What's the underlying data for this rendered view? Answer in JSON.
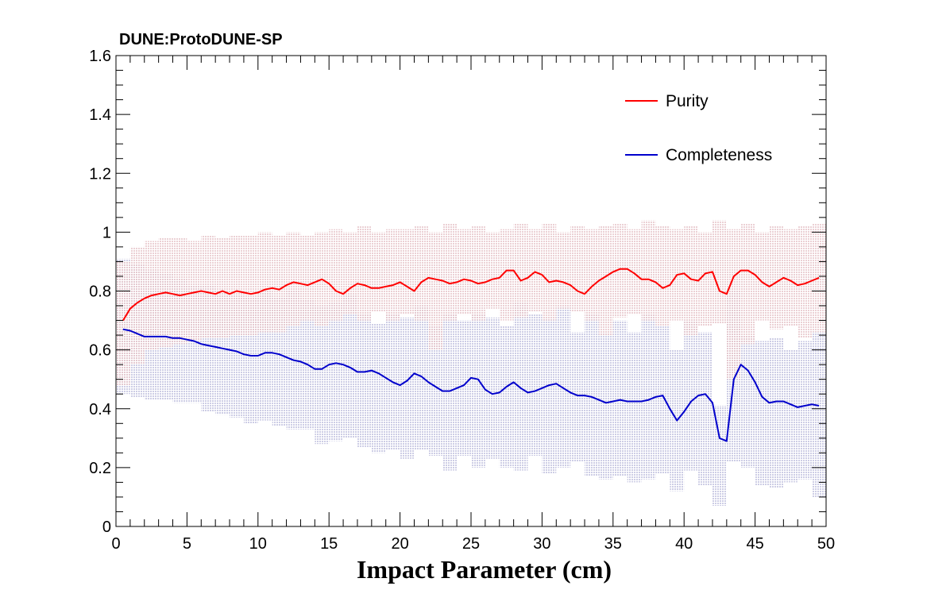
{
  "chart_data": {
    "type": "line",
    "title": "DUNE:ProtoDUNE-SP",
    "xlabel": "Impact Parameter (cm)",
    "ylabel": "",
    "xlim": [
      0,
      50
    ],
    "ylim": [
      0,
      1.6
    ],
    "xticks": [
      "0",
      "5",
      "10",
      "15",
      "20",
      "25",
      "30",
      "35",
      "40",
      "45",
      "50"
    ],
    "yticks": [
      "0",
      "0.2",
      "0.4",
      "0.6",
      "0.8",
      "1",
      "1.2",
      "1.4",
      "1.6"
    ],
    "grid": false,
    "legend_position": "top-right",
    "colors": {
      "purity": "#ff0000",
      "completeness": "#0000cc",
      "purity_band": "#e8c8cc",
      "completeness_band": "#c4c4e0"
    },
    "series": [
      {
        "name": "Purity",
        "color": "#ff0000",
        "x": [
          0.5,
          1,
          1.5,
          2,
          2.5,
          3,
          3.5,
          4,
          4.5,
          5,
          5.5,
          6,
          6.5,
          7,
          7.5,
          8,
          8.5,
          9,
          9.5,
          10,
          10.5,
          11,
          11.5,
          12,
          12.5,
          13,
          13.5,
          14,
          14.5,
          15,
          15.5,
          16,
          16.5,
          17,
          17.5,
          18,
          18.5,
          19,
          19.5,
          20,
          20.5,
          21,
          21.5,
          22,
          22.5,
          23,
          23.5,
          24,
          24.5,
          25,
          25.5,
          26,
          26.5,
          27,
          27.5,
          28,
          28.5,
          29,
          29.5,
          30,
          30.5,
          31,
          31.5,
          32,
          32.5,
          33,
          33.5,
          34,
          34.5,
          35,
          35.5,
          36,
          36.5,
          37,
          37.5,
          38,
          38.5,
          39,
          39.5,
          40,
          40.5,
          41,
          41.5,
          42,
          42.5,
          43,
          43.5,
          44,
          44.5,
          45,
          45.5,
          46,
          46.5,
          47,
          47.5,
          48,
          48.5,
          49,
          49.5
        ],
        "y": [
          0.7,
          0.74,
          0.76,
          0.775,
          0.785,
          0.79,
          0.795,
          0.79,
          0.785,
          0.79,
          0.795,
          0.8,
          0.795,
          0.79,
          0.8,
          0.79,
          0.8,
          0.795,
          0.79,
          0.795,
          0.805,
          0.81,
          0.805,
          0.82,
          0.83,
          0.825,
          0.82,
          0.83,
          0.84,
          0.825,
          0.8,
          0.79,
          0.81,
          0.825,
          0.82,
          0.81,
          0.81,
          0.815,
          0.82,
          0.83,
          0.815,
          0.8,
          0.83,
          0.845,
          0.84,
          0.835,
          0.825,
          0.83,
          0.84,
          0.835,
          0.825,
          0.83,
          0.84,
          0.845,
          0.87,
          0.87,
          0.835,
          0.845,
          0.865,
          0.855,
          0.83,
          0.835,
          0.83,
          0.82,
          0.8,
          0.79,
          0.815,
          0.835,
          0.85,
          0.865,
          0.875,
          0.875,
          0.86,
          0.84,
          0.84,
          0.83,
          0.81,
          0.82,
          0.855,
          0.86,
          0.84,
          0.835,
          0.86,
          0.865,
          0.8,
          0.79,
          0.85,
          0.87,
          0.87,
          0.855,
          0.83,
          0.815,
          0.83,
          0.845,
          0.835,
          0.82,
          0.825,
          0.835,
          0.845
        ]
      },
      {
        "name": "Completeness",
        "color": "#0000cc",
        "x": [
          0.5,
          1,
          1.5,
          2,
          2.5,
          3,
          3.5,
          4,
          4.5,
          5,
          5.5,
          6,
          6.5,
          7,
          7.5,
          8,
          8.5,
          9,
          9.5,
          10,
          10.5,
          11,
          11.5,
          12,
          12.5,
          13,
          13.5,
          14,
          14.5,
          15,
          15.5,
          16,
          16.5,
          17,
          17.5,
          18,
          18.5,
          19,
          19.5,
          20,
          20.5,
          21,
          21.5,
          22,
          22.5,
          23,
          23.5,
          24,
          24.5,
          25,
          25.5,
          26,
          26.5,
          27,
          27.5,
          28,
          28.5,
          29,
          29.5,
          30,
          30.5,
          31,
          31.5,
          32,
          32.5,
          33,
          33.5,
          34,
          34.5,
          35,
          35.5,
          36,
          36.5,
          37,
          37.5,
          38,
          38.5,
          39,
          39.5,
          40,
          40.5,
          41,
          41.5,
          42,
          42.5,
          43,
          43.5,
          44,
          44.5,
          45,
          45.5,
          46,
          46.5,
          47,
          47.5,
          48,
          48.5,
          49,
          49.5
        ],
        "y": [
          0.67,
          0.665,
          0.655,
          0.645,
          0.645,
          0.645,
          0.645,
          0.64,
          0.64,
          0.635,
          0.63,
          0.62,
          0.615,
          0.61,
          0.605,
          0.6,
          0.595,
          0.585,
          0.58,
          0.58,
          0.59,
          0.59,
          0.585,
          0.575,
          0.565,
          0.56,
          0.55,
          0.535,
          0.535,
          0.55,
          0.555,
          0.55,
          0.54,
          0.525,
          0.525,
          0.53,
          0.52,
          0.505,
          0.49,
          0.48,
          0.495,
          0.52,
          0.51,
          0.49,
          0.475,
          0.46,
          0.46,
          0.47,
          0.48,
          0.505,
          0.5,
          0.465,
          0.45,
          0.455,
          0.475,
          0.49,
          0.47,
          0.455,
          0.46,
          0.47,
          0.48,
          0.485,
          0.47,
          0.455,
          0.445,
          0.445,
          0.44,
          0.43,
          0.42,
          0.425,
          0.43,
          0.425,
          0.425,
          0.425,
          0.43,
          0.44,
          0.445,
          0.4,
          0.36,
          0.39,
          0.425,
          0.445,
          0.45,
          0.42,
          0.3,
          0.29,
          0.5,
          0.55,
          0.53,
          0.49,
          0.44,
          0.42,
          0.425,
          0.425,
          0.415,
          0.405,
          0.41,
          0.415,
          0.41
        ]
      }
    ],
    "bands": [
      {
        "series": "Purity",
        "color": "#e8c8cc",
        "bin_edges": [
          0,
          1,
          2,
          3,
          4,
          5,
          6,
          7,
          8,
          9,
          10,
          11,
          12,
          13,
          14,
          15,
          16,
          17,
          18,
          19,
          20,
          21,
          22,
          23,
          24,
          25,
          26,
          27,
          28,
          29,
          30,
          31,
          32,
          33,
          34,
          35,
          36,
          37,
          38,
          39,
          40,
          41,
          42,
          43,
          44,
          45,
          46,
          47,
          48,
          49,
          50
        ],
        "low": [
          0.48,
          0.55,
          0.6,
          0.61,
          0.62,
          0.63,
          0.64,
          0.64,
          0.65,
          0.65,
          0.66,
          0.66,
          0.68,
          0.7,
          0.68,
          0.7,
          0.72,
          0.7,
          0.73,
          0.7,
          0.72,
          0.7,
          0.6,
          0.7,
          0.72,
          0.7,
          0.74,
          0.7,
          0.71,
          0.73,
          0.7,
          0.74,
          0.73,
          0.7,
          0.65,
          0.71,
          0.72,
          0.7,
          0.68,
          0.7,
          0.65,
          0.68,
          0.69,
          0.5,
          0.62,
          0.7,
          0.67,
          0.68,
          0.64,
          0.66
        ],
        "high": [
          0.9,
          0.95,
          0.97,
          0.98,
          0.98,
          0.97,
          0.99,
          0.98,
          0.99,
          0.99,
          1.0,
          0.99,
          1.0,
          0.99,
          1.0,
          1.01,
          1.0,
          1.02,
          1.0,
          1.01,
          1.01,
          1.02,
          1.0,
          1.03,
          1.01,
          1.02,
          1.0,
          1.01,
          1.03,
          1.01,
          1.03,
          1.0,
          1.02,
          1.01,
          1.02,
          1.03,
          1.01,
          1.04,
          1.02,
          1.01,
          1.02,
          1.0,
          1.04,
          1.01,
          1.03,
          1.0,
          1.02,
          1.01,
          1.02,
          1.03
        ]
      },
      {
        "series": "Completeness",
        "color": "#c4c4e0",
        "bin_edges": [
          0,
          1,
          2,
          3,
          4,
          5,
          6,
          7,
          8,
          9,
          10,
          11,
          12,
          13,
          14,
          15,
          16,
          17,
          18,
          19,
          20,
          21,
          22,
          23,
          24,
          25,
          26,
          27,
          28,
          29,
          30,
          31,
          32,
          33,
          34,
          35,
          36,
          37,
          38,
          39,
          40,
          41,
          42,
          43,
          44,
          45,
          46,
          47,
          48,
          49,
          50
        ],
        "low": [
          0.45,
          0.44,
          0.43,
          0.43,
          0.42,
          0.42,
          0.39,
          0.38,
          0.37,
          0.35,
          0.36,
          0.34,
          0.33,
          0.33,
          0.28,
          0.29,
          0.3,
          0.27,
          0.25,
          0.26,
          0.23,
          0.26,
          0.24,
          0.19,
          0.24,
          0.2,
          0.23,
          0.2,
          0.19,
          0.24,
          0.18,
          0.2,
          0.22,
          0.17,
          0.16,
          0.17,
          0.15,
          0.16,
          0.18,
          0.12,
          0.19,
          0.14,
          0.07,
          0.22,
          0.2,
          0.14,
          0.13,
          0.15,
          0.16,
          0.1
        ],
        "high": [
          0.91,
          0.89,
          0.87,
          0.86,
          0.84,
          0.82,
          0.82,
          0.8,
          0.79,
          0.78,
          0.8,
          0.78,
          0.8,
          0.77,
          0.75,
          0.76,
          0.79,
          0.72,
          0.69,
          0.72,
          0.71,
          0.75,
          0.68,
          0.72,
          0.7,
          0.72,
          0.71,
          0.68,
          0.76,
          0.72,
          0.71,
          0.75,
          0.66,
          0.72,
          0.66,
          0.7,
          0.66,
          0.72,
          0.68,
          0.6,
          0.7,
          0.66,
          0.41,
          0.8,
          0.65,
          0.63,
          0.64,
          0.6,
          0.63,
          0.66
        ]
      }
    ]
  }
}
